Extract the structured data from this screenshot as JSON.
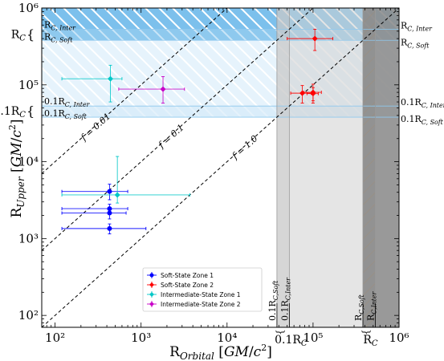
{
  "chart_data": {
    "type": "scatter",
    "x_scale": "log",
    "y_scale": "log",
    "xlim": [
      70,
      1000000
    ],
    "ylim": [
      70,
      1000000
    ],
    "xlabel": "R_Orbital [GM/c²]",
    "ylabel": "R_Upper [GM/c²]",
    "x_ticks": [
      {
        "value": 100,
        "label": "10²"
      },
      {
        "value": 1000,
        "label": "10³"
      },
      {
        "value": 10000,
        "label": "10⁴"
      },
      {
        "value": 100000,
        "label": "10⁵"
      },
      {
        "value": 1000000,
        "label": "10⁶"
      }
    ],
    "y_ticks": [
      {
        "value": 100,
        "label": "10²"
      },
      {
        "value": 1000,
        "label": "10³"
      },
      {
        "value": 10000,
        "label": "10⁴"
      },
      {
        "value": 100000,
        "label": "10⁵"
      },
      {
        "value": 1000000,
        "label": "10⁶"
      }
    ],
    "lines": [
      {
        "label": "f = 0.01",
        "f": 0.01,
        "label_x": 200,
        "color": "#000000"
      },
      {
        "label": "f = 0.1",
        "f": 0.1,
        "label_x": 1600,
        "color": "#000000"
      },
      {
        "label": "f = 1.0",
        "f": 1.0,
        "label_x": 11500,
        "color": "#000000"
      }
    ],
    "horizontal_bands": [
      {
        "name": "R_C",
        "y_soft": 380000,
        "y_inter": 530000,
        "color": "#5ab0e6",
        "alpha": 0.45,
        "hatch": true,
        "label_soft": "R_C, Soft",
        "label_inter": "R_C, Inter",
        "left_label": "R_C"
      },
      {
        "name": "0.1R_C",
        "y_soft": 38000,
        "y_inter": 53000,
        "color": "#aad6f5",
        "alpha": 0.35,
        "hatch": true,
        "label_soft": "0.1R_C, Soft",
        "label_inter": "0.1R_C, Inter",
        "left_label": "0.1R_C"
      }
    ],
    "vertical_bands": [
      {
        "name": "0.1R_C",
        "x_soft": 38000,
        "x_inter": 53000,
        "color": "#d0d0d0",
        "label_soft": "0.1R_C, Soft",
        "label_inter": "0.1R_C, Inter",
        "bottom_label": "0.1R_C"
      },
      {
        "name": "R_C",
        "x_soft": 380000,
        "x_inter": 530000,
        "color": "#7a7a7a",
        "label_soft": "R_C, Soft",
        "label_inter": "R_C, Inter",
        "bottom_label": "R_C"
      }
    ],
    "series": [
      {
        "name": "Soft-State Zone 1",
        "color": "#0000ff",
        "points": [
          {
            "x": 430,
            "y": 4100,
            "xerr": [
              310,
              270
            ],
            "yerr": [
              900,
              1000
            ]
          },
          {
            "x": 430,
            "y": 2450,
            "xerr": [
              310,
              270
            ],
            "yerr": [
              350,
              350
            ]
          },
          {
            "x": 430,
            "y": 2150,
            "xerr": [
              310,
              240
            ],
            "yerr": [
              350,
              350
            ]
          },
          {
            "x": 430,
            "y": 1350,
            "xerr": [
              310,
              710
            ],
            "yerr": [
              200,
              200
            ]
          }
        ]
      },
      {
        "name": "Soft-State Zone 2",
        "color": "#ff0000",
        "points": [
          {
            "x": 105000,
            "y": 400000,
            "xerr": [
              55000,
              65000
            ],
            "yerr": [
              120000,
              130000
            ]
          },
          {
            "x": 100000,
            "y": 80000,
            "xerr": [
              22000,
              25000
            ],
            "yerr": [
              22000,
              22000
            ]
          },
          {
            "x": 75000,
            "y": 78000,
            "xerr": [
              20000,
              20000
            ],
            "yerr": [
              20000,
              20000
            ]
          },
          {
            "x": 100000,
            "y": 77000,
            "xerr": [
              15000,
              15000
            ],
            "yerr": [
              15000,
              15000
            ]
          }
        ]
      },
      {
        "name": "Intermediate-State Zone 1",
        "color": "#00c8c8",
        "points": [
          {
            "x": 440,
            "y": 120000,
            "xerr": [
              320,
              160
            ],
            "yerr": [
              60000,
              60000
            ]
          },
          {
            "x": 530,
            "y": 3700,
            "xerr": [
              410,
              3170
            ],
            "yerr": [
              800,
              8000
            ]
          }
        ]
      },
      {
        "name": "Intermediate-State Zone 2",
        "color": "#c800c8",
        "points": [
          {
            "x": 1800,
            "y": 88000,
            "xerr": [
              1250,
              1400
            ],
            "yerr": [
              30000,
              40000
            ]
          }
        ]
      }
    ],
    "legend_position": "lower-center"
  }
}
